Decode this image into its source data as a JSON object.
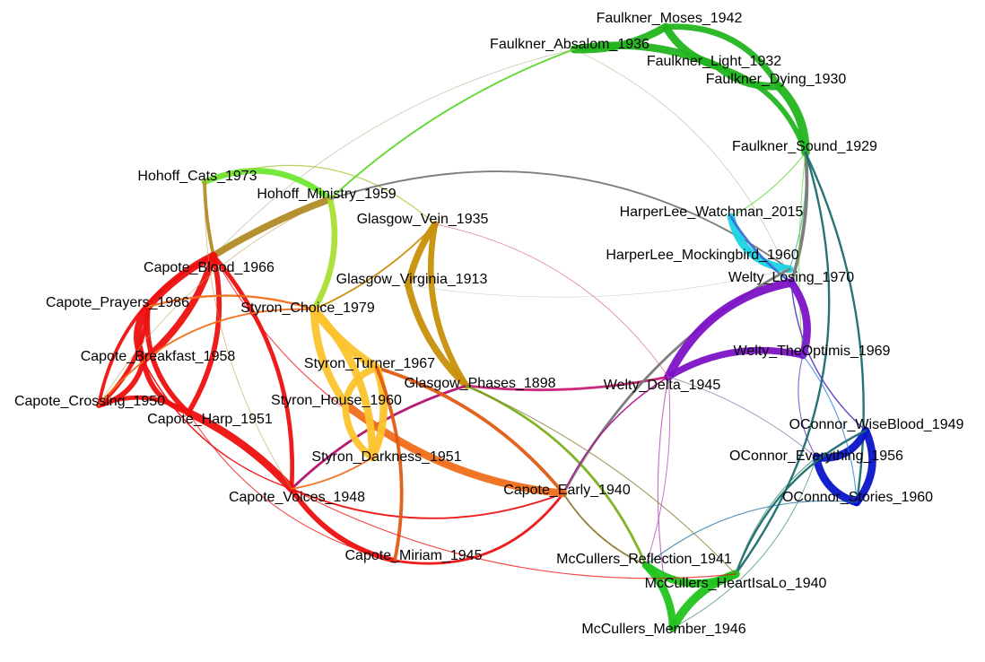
{
  "graph": {
    "nodes": [
      {
        "id": "faulkner_moses",
        "label": "Faulkner_Moses_1942",
        "color": "#22b51e"
      },
      {
        "id": "faulkner_absalom",
        "label": "Faulkner_Absalom_1936",
        "color": "#5cd62a"
      },
      {
        "id": "faulkner_light",
        "label": "Faulkner_Light_1932",
        "color": "#22b51e"
      },
      {
        "id": "faulkner_dying",
        "label": "Faulkner_Dying_1930",
        "color": "#22b51e"
      },
      {
        "id": "faulkner_sound",
        "label": "Faulkner_Sound_1929",
        "color": "#22b51e"
      },
      {
        "id": "hohoff_cats",
        "label": "Hohoff_Cats_1973",
        "color": "#6ee830"
      },
      {
        "id": "hohoff_ministry",
        "label": "Hohoff_Ministry_1959",
        "color": "#b4e33a"
      },
      {
        "id": "glasgow_vein",
        "label": "Glasgow_Vein_1935",
        "color": "#c8900a"
      },
      {
        "id": "glasgow_virginia",
        "label": "Glasgow_Virginia_1913",
        "color": "#c8900a"
      },
      {
        "id": "glasgow_phases",
        "label": "Glasgow_Phases_1898",
        "color": "#c8900a"
      },
      {
        "id": "harperlee_watchman",
        "label": "HarperLee_Watchman_2015",
        "color": "#19d4e6"
      },
      {
        "id": "harperlee_mockingbird",
        "label": "HarperLee_Mockingbird_1960",
        "color": "#3c6fd6"
      },
      {
        "id": "welty_losing",
        "label": "Welty_Losing_1970",
        "color": "#7d12c8"
      },
      {
        "id": "welty_theoptimis",
        "label": "Welty_TheOptimis_1969",
        "color": "#7d12c8"
      },
      {
        "id": "welty_delta",
        "label": "Welty_Delta_1945",
        "color": "#7d12c8"
      },
      {
        "id": "capote_blood",
        "label": "Capote_Blood_1966",
        "color": "#b08a26"
      },
      {
        "id": "capote_prayers",
        "label": "Capote_Prayers_1986",
        "color": "#ee1010"
      },
      {
        "id": "capote_breakfast",
        "label": "Capote_Breakfast_1958",
        "color": "#ee1010"
      },
      {
        "id": "capote_crossing",
        "label": "Capote_Crossing_1950",
        "color": "#ee1010"
      },
      {
        "id": "capote_harp",
        "label": "Capote_Harp_1951",
        "color": "#ee1010"
      },
      {
        "id": "capote_voices",
        "label": "Capote_Voices_1948",
        "color": "#ee1010"
      },
      {
        "id": "capote_miriam",
        "label": "Capote_Miriam_1945",
        "color": "#ee1010"
      },
      {
        "id": "capote_early",
        "label": "Capote_Early_1940",
        "color": "#f0701c"
      },
      {
        "id": "styron_choice",
        "label": "Styron_Choice_1979",
        "color": "#fcc32e"
      },
      {
        "id": "styron_turner",
        "label": "Styron_Turner_1967",
        "color": "#fcc32e"
      },
      {
        "id": "styron_house",
        "label": "Styron_House_1960",
        "color": "#fcc32e"
      },
      {
        "id": "styron_darkness",
        "label": "Styron_Darkness_1951",
        "color": "#fcc32e"
      },
      {
        "id": "oconnor_wiseblood",
        "label": "OConnor_WiseBlood_1949",
        "color": "#0a14c8"
      },
      {
        "id": "oconnor_everything",
        "label": "OConnor_Everything_1956",
        "color": "#0a14c8"
      },
      {
        "id": "oconnor_stories",
        "label": "OConnor_Stories_1960",
        "color": "#0a14c8"
      },
      {
        "id": "mccullers_reflection",
        "label": "McCullers_Reflection_1941",
        "color": "#22c41e"
      },
      {
        "id": "mccullers_heartisalo",
        "label": "McCullers_HeartIsaLo_1940",
        "color": "#22c41e"
      },
      {
        "id": "mccullers_member",
        "label": "McCullers_Member_1946",
        "color": "#22c41e"
      }
    ],
    "edges": [
      {
        "source": "faulkner_absalom",
        "target": "faulkner_moses",
        "weight": 9,
        "color": "#22b51e",
        "bend": 0.15
      },
      {
        "source": "faulkner_moses",
        "target": "faulkner_light",
        "weight": 9,
        "color": "#22b51e",
        "bend": 0.2
      },
      {
        "source": "faulkner_absalom",
        "target": "faulkner_light",
        "weight": 9,
        "color": "#22b51e",
        "bend": -0.15
      },
      {
        "source": "faulkner_light",
        "target": "faulkner_dying",
        "weight": 9,
        "color": "#22b51e",
        "bend": 0.2
      },
      {
        "source": "faulkner_dying",
        "target": "faulkner_sound",
        "weight": 10,
        "color": "#22b51e",
        "bend": -0.2
      },
      {
        "source": "faulkner_moses",
        "target": "faulkner_dying",
        "weight": 7,
        "color": "#22b51e",
        "bend": -0.3
      },
      {
        "source": "faulkner_light",
        "target": "faulkner_sound",
        "weight": 6,
        "color": "#22b51e",
        "bend": -0.25
      },
      {
        "source": "faulkner_absalom",
        "target": "hohoff_ministry",
        "weight": 2,
        "color": "#5cd62a",
        "bend": 0.1
      },
      {
        "source": "faulkner_absalom",
        "target": "capote_blood",
        "weight": 0.6,
        "color": "#a0a070",
        "bend": 0.15
      },
      {
        "source": "faulkner_absalom",
        "target": "welty_losing",
        "weight": 0.6,
        "color": "#a0a070",
        "bend": -0.2
      },
      {
        "source": "faulkner_sound",
        "target": "harperlee_watchman",
        "weight": 1.2,
        "color": "#5cd62a",
        "bend": -0.1
      },
      {
        "source": "faulkner_sound",
        "target": "harperlee_mockingbird",
        "weight": 1.2,
        "color": "#20b090",
        "bend": -0.1
      },
      {
        "source": "faulkner_sound",
        "target": "welty_losing",
        "weight": 4,
        "color": "#777777",
        "bend": -0.1
      },
      {
        "source": "faulkner_sound",
        "target": "oconnor_stories",
        "weight": 2.5,
        "color": "#1a6b6b",
        "bend": -0.15
      },
      {
        "source": "faulkner_sound",
        "target": "welty_theoptimis",
        "weight": 1,
        "color": "#5cd62a",
        "bend": 0.05
      },
      {
        "source": "faulkner_sound",
        "target": "mccullers_heartisalo",
        "weight": 2.5,
        "color": "#1a6b6b",
        "bend": -0.25
      },
      {
        "source": "hohoff_cats",
        "target": "hohoff_ministry",
        "weight": 7,
        "color": "#6ee830",
        "bend": -0.3
      },
      {
        "source": "hohoff_cats",
        "target": "capote_blood",
        "weight": 4,
        "color": "#b08a26",
        "bend": 0.05
      },
      {
        "source": "hohoff_cats",
        "target": "glasgow_vein",
        "weight": 1.2,
        "color": "#9bc52a",
        "bend": -0.3
      },
      {
        "source": "hohoff_ministry",
        "target": "capote_blood",
        "weight": 8,
        "color": "#b08a26",
        "bend": 0.05
      },
      {
        "source": "hohoff_ministry",
        "target": "styron_choice",
        "weight": 7,
        "color": "#a8e030",
        "bend": -0.2
      },
      {
        "source": "hohoff_ministry",
        "target": "harperlee_mockingbird",
        "weight": 2,
        "color": "#777777",
        "bend": -0.25
      },
      {
        "source": "glasgow_vein",
        "target": "glasgow_virginia",
        "weight": 8,
        "color": "#c8900a",
        "bend": 0.1
      },
      {
        "source": "glasgow_vein",
        "target": "glasgow_phases",
        "weight": 7,
        "color": "#c8900a",
        "bend": 0.2
      },
      {
        "source": "glasgow_virginia",
        "target": "glasgow_phases",
        "weight": 8,
        "color": "#c8900a",
        "bend": 0.15
      },
      {
        "source": "glasgow_vein",
        "target": "styron_choice",
        "weight": 2,
        "color": "#c8900a",
        "bend": -0.1
      },
      {
        "source": "glasgow_phases",
        "target": "welty_delta",
        "weight": 3,
        "color": "#c81e78",
        "bend": 0.08
      },
      {
        "source": "glasgow_phases",
        "target": "capote_voices",
        "weight": 3,
        "color": "#b0106e",
        "bend": 0.12
      },
      {
        "source": "glasgow_phases",
        "target": "mccullers_reflection",
        "weight": 3,
        "color": "#7ab01e",
        "bend": -0.2
      },
      {
        "source": "harperlee_watchman",
        "target": "harperlee_mockingbird",
        "weight": 9,
        "color": "#19d4e6",
        "bend": 0.35
      },
      {
        "source": "harperlee_watchman",
        "target": "welty_losing",
        "weight": 3,
        "color": "#3c6fd6",
        "bend": 0.1
      },
      {
        "source": "harperlee_mockingbird",
        "target": "capote_early",
        "weight": 3,
        "color": "#777777",
        "bend": 0.15
      },
      {
        "source": "welty_losing",
        "target": "welty_delta",
        "weight": 10,
        "color": "#7d12c8",
        "bend": 0.25
      },
      {
        "source": "welty_losing",
        "target": "welty_theoptimis",
        "weight": 9,
        "color": "#7d12c8",
        "bend": -0.25
      },
      {
        "source": "welty_delta",
        "target": "welty_theoptimis",
        "weight": 8,
        "color": "#7d12c8",
        "bend": -0.2
      },
      {
        "source": "welty_losing",
        "target": "oconnor_wiseblood",
        "weight": 1.5,
        "color": "#5a3cc0",
        "bend": 0.2
      },
      {
        "source": "welty_theoptimis",
        "target": "oconnor_everything",
        "weight": 1.2,
        "color": "#5a3cc0",
        "bend": 0.2
      },
      {
        "source": "welty_delta",
        "target": "mccullers_member",
        "weight": 1.2,
        "color": "#b040b0",
        "bend": 0.1
      },
      {
        "source": "welty_delta",
        "target": "capote_early",
        "weight": 1.5,
        "color": "#b01090",
        "bend": 0.15
      },
      {
        "source": "capote_blood",
        "target": "capote_prayers",
        "weight": 9,
        "color": "#ee1010",
        "bend": 0.1
      },
      {
        "source": "capote_blood",
        "target": "capote_breakfast",
        "weight": 8,
        "color": "#ee1010",
        "bend": -0.15
      },
      {
        "source": "capote_blood",
        "target": "capote_crossing",
        "weight": 4,
        "color": "#ee1010",
        "bend": 0.25
      },
      {
        "source": "capote_blood",
        "target": "capote_harp",
        "weight": 6,
        "color": "#ee1010",
        "bend": -0.2
      },
      {
        "source": "capote_blood",
        "target": "capote_voices",
        "weight": 5,
        "color": "#ee1010",
        "bend": -0.2
      },
      {
        "source": "capote_prayers",
        "target": "capote_breakfast",
        "weight": 9,
        "color": "#ee1010",
        "bend": 0.3
      },
      {
        "source": "capote_prayers",
        "target": "capote_crossing",
        "weight": 5,
        "color": "#ee1010",
        "bend": -0.2
      },
      {
        "source": "capote_prayers",
        "target": "capote_harp",
        "weight": 6,
        "color": "#ee1010",
        "bend": 0.25
      },
      {
        "source": "capote_breakfast",
        "target": "capote_crossing",
        "weight": 6,
        "color": "#ee1010",
        "bend": -0.3
      },
      {
        "source": "capote_breakfast",
        "target": "capote_harp",
        "weight": 6,
        "color": "#ee1010",
        "bend": 0.3
      },
      {
        "source": "capote_crossing",
        "target": "capote_harp",
        "weight": 5,
        "color": "#ee1010",
        "bend": -0.25
      },
      {
        "source": "capote_harp",
        "target": "capote_voices",
        "weight": 9,
        "color": "#ee1010",
        "bend": -0.1
      },
      {
        "source": "capote_voices",
        "target": "capote_miriam",
        "weight": 6,
        "color": "#ee1010",
        "bend": 0.2
      },
      {
        "source": "capote_miriam",
        "target": "capote_early",
        "weight": 3,
        "color": "#ee1010",
        "bend": 0.3
      },
      {
        "source": "capote_voices",
        "target": "capote_early",
        "weight": 2,
        "color": "#ee1010",
        "bend": 0.2
      },
      {
        "source": "capote_prayers",
        "target": "styron_choice",
        "weight": 2.5,
        "color": "#f0701c",
        "bend": -0.15
      },
      {
        "source": "capote_crossing",
        "target": "styron_choice",
        "weight": 2,
        "color": "#f0701c",
        "bend": -0.25
      },
      {
        "source": "capote_breakfast",
        "target": "capote_voices",
        "weight": 1.5,
        "color": "#ee1010",
        "bend": 0.2
      },
      {
        "source": "capote_blood",
        "target": "capote_early",
        "weight": 1.2,
        "color": "#ee1010",
        "bend": 0.25
      },
      {
        "source": "capote_early",
        "target": "styron_house",
        "weight": 9,
        "color": "#f0701c",
        "bend": -0.15
      },
      {
        "source": "capote_early",
        "target": "styron_turner",
        "weight": 4,
        "color": "#e05a14",
        "bend": 0.15
      },
      {
        "source": "capote_early",
        "target": "mccullers_reflection",
        "weight": 2,
        "color": "#8a7a30",
        "bend": 0.15
      },
      {
        "source": "styron_choice",
        "target": "styron_turner",
        "weight": 10,
        "color": "#fcc32e",
        "bend": 0.1
      },
      {
        "source": "styron_choice",
        "target": "styron_house",
        "weight": 9,
        "color": "#fcc32e",
        "bend": 0.15
      },
      {
        "source": "styron_choice",
        "target": "styron_darkness",
        "weight": 9,
        "color": "#fcc32e",
        "bend": -0.2
      },
      {
        "source": "styron_turner",
        "target": "styron_house",
        "weight": 8,
        "color": "#fcc32e",
        "bend": 0.3
      },
      {
        "source": "styron_turner",
        "target": "styron_darkness",
        "weight": 9,
        "color": "#fcc32e",
        "bend": -0.2
      },
      {
        "source": "styron_house",
        "target": "styron_darkness",
        "weight": 8,
        "color": "#fcc32e",
        "bend": 0.25
      },
      {
        "source": "styron_darkness",
        "target": "capote_voices",
        "weight": 2,
        "color": "#f0701c",
        "bend": -0.1
      },
      {
        "source": "styron_turner",
        "target": "capote_miriam",
        "weight": 4,
        "color": "#e05a14",
        "bend": -0.15
      },
      {
        "source": "oconnor_wiseblood",
        "target": "oconnor_everything",
        "weight": 9,
        "color": "#0a14c8",
        "bend": -0.35
      },
      {
        "source": "oconnor_wiseblood",
        "target": "oconnor_stories",
        "weight": 9,
        "color": "#0a14c8",
        "bend": -0.3
      },
      {
        "source": "oconnor_everything",
        "target": "oconnor_stories",
        "weight": 9,
        "color": "#0a14c8",
        "bend": 0.3
      },
      {
        "source": "oconnor_wiseblood",
        "target": "mccullers_heartisalo",
        "weight": 2.5,
        "color": "#1a6b6b",
        "bend": 0.2
      },
      {
        "source": "oconnor_stories",
        "target": "mccullers_reflection",
        "weight": 1.2,
        "color": "#1a6b9b",
        "bend": 0.2
      },
      {
        "source": "welty_theoptimis",
        "target": "oconnor_stories",
        "weight": 1.2,
        "color": "#2080d0",
        "bend": -0.15
      },
      {
        "source": "mccullers_reflection",
        "target": "mccullers_heartisalo",
        "weight": 9,
        "color": "#22c41e",
        "bend": 0.3
      },
      {
        "source": "mccullers_reflection",
        "target": "mccullers_member",
        "weight": 9,
        "color": "#22c41e",
        "bend": -0.2
      },
      {
        "source": "mccullers_heartisalo",
        "target": "mccullers_member",
        "weight": 10,
        "color": "#22c41e",
        "bend": 0.2
      },
      {
        "source": "mccullers_heartisalo",
        "target": "oconnor_everything",
        "weight": 1.2,
        "color": "#3a8a6a",
        "bend": -0.15
      },
      {
        "source": "mccullers_member",
        "target": "oconnor_everything",
        "weight": 1,
        "color": "#3a8a6a",
        "bend": 0.2
      },
      {
        "source": "mccullers_heartisalo",
        "target": "glasgow_phases",
        "weight": 1.2,
        "color": "#8a7a30",
        "bend": 0.1
      },
      {
        "source": "welty_delta",
        "target": "mccullers_reflection",
        "weight": 1,
        "color": "#b040b0",
        "bend": -0.1
      },
      {
        "source": "welty_delta",
        "target": "oconnor_everything",
        "weight": 1,
        "color": "#8870a0",
        "bend": -0.1
      },
      {
        "source": "capote_voices",
        "target": "mccullers_heartisalo",
        "weight": 1.2,
        "color": "#ee1010",
        "bend": 0.15
      },
      {
        "source": "capote_harp",
        "target": "capote_miriam",
        "weight": 1.2,
        "color": "#ee1010",
        "bend": 0.2
      },
      {
        "source": "hohoff_cats",
        "target": "capote_voices",
        "weight": 0.8,
        "color": "#c0a050",
        "bend": 0.15
      },
      {
        "source": "hohoff_ministry",
        "target": "capote_crossing",
        "weight": 0.8,
        "color": "#c0a050",
        "bend": 0.15
      },
      {
        "source": "glasgow_vein",
        "target": "welty_delta",
        "weight": 0.8,
        "color": "#d05080",
        "bend": -0.2
      },
      {
        "source": "glasgow_virginia",
        "target": "harperlee_mockingbird",
        "weight": 0.6,
        "color": "#a0c0a0",
        "bend": 0.1
      }
    ]
  }
}
